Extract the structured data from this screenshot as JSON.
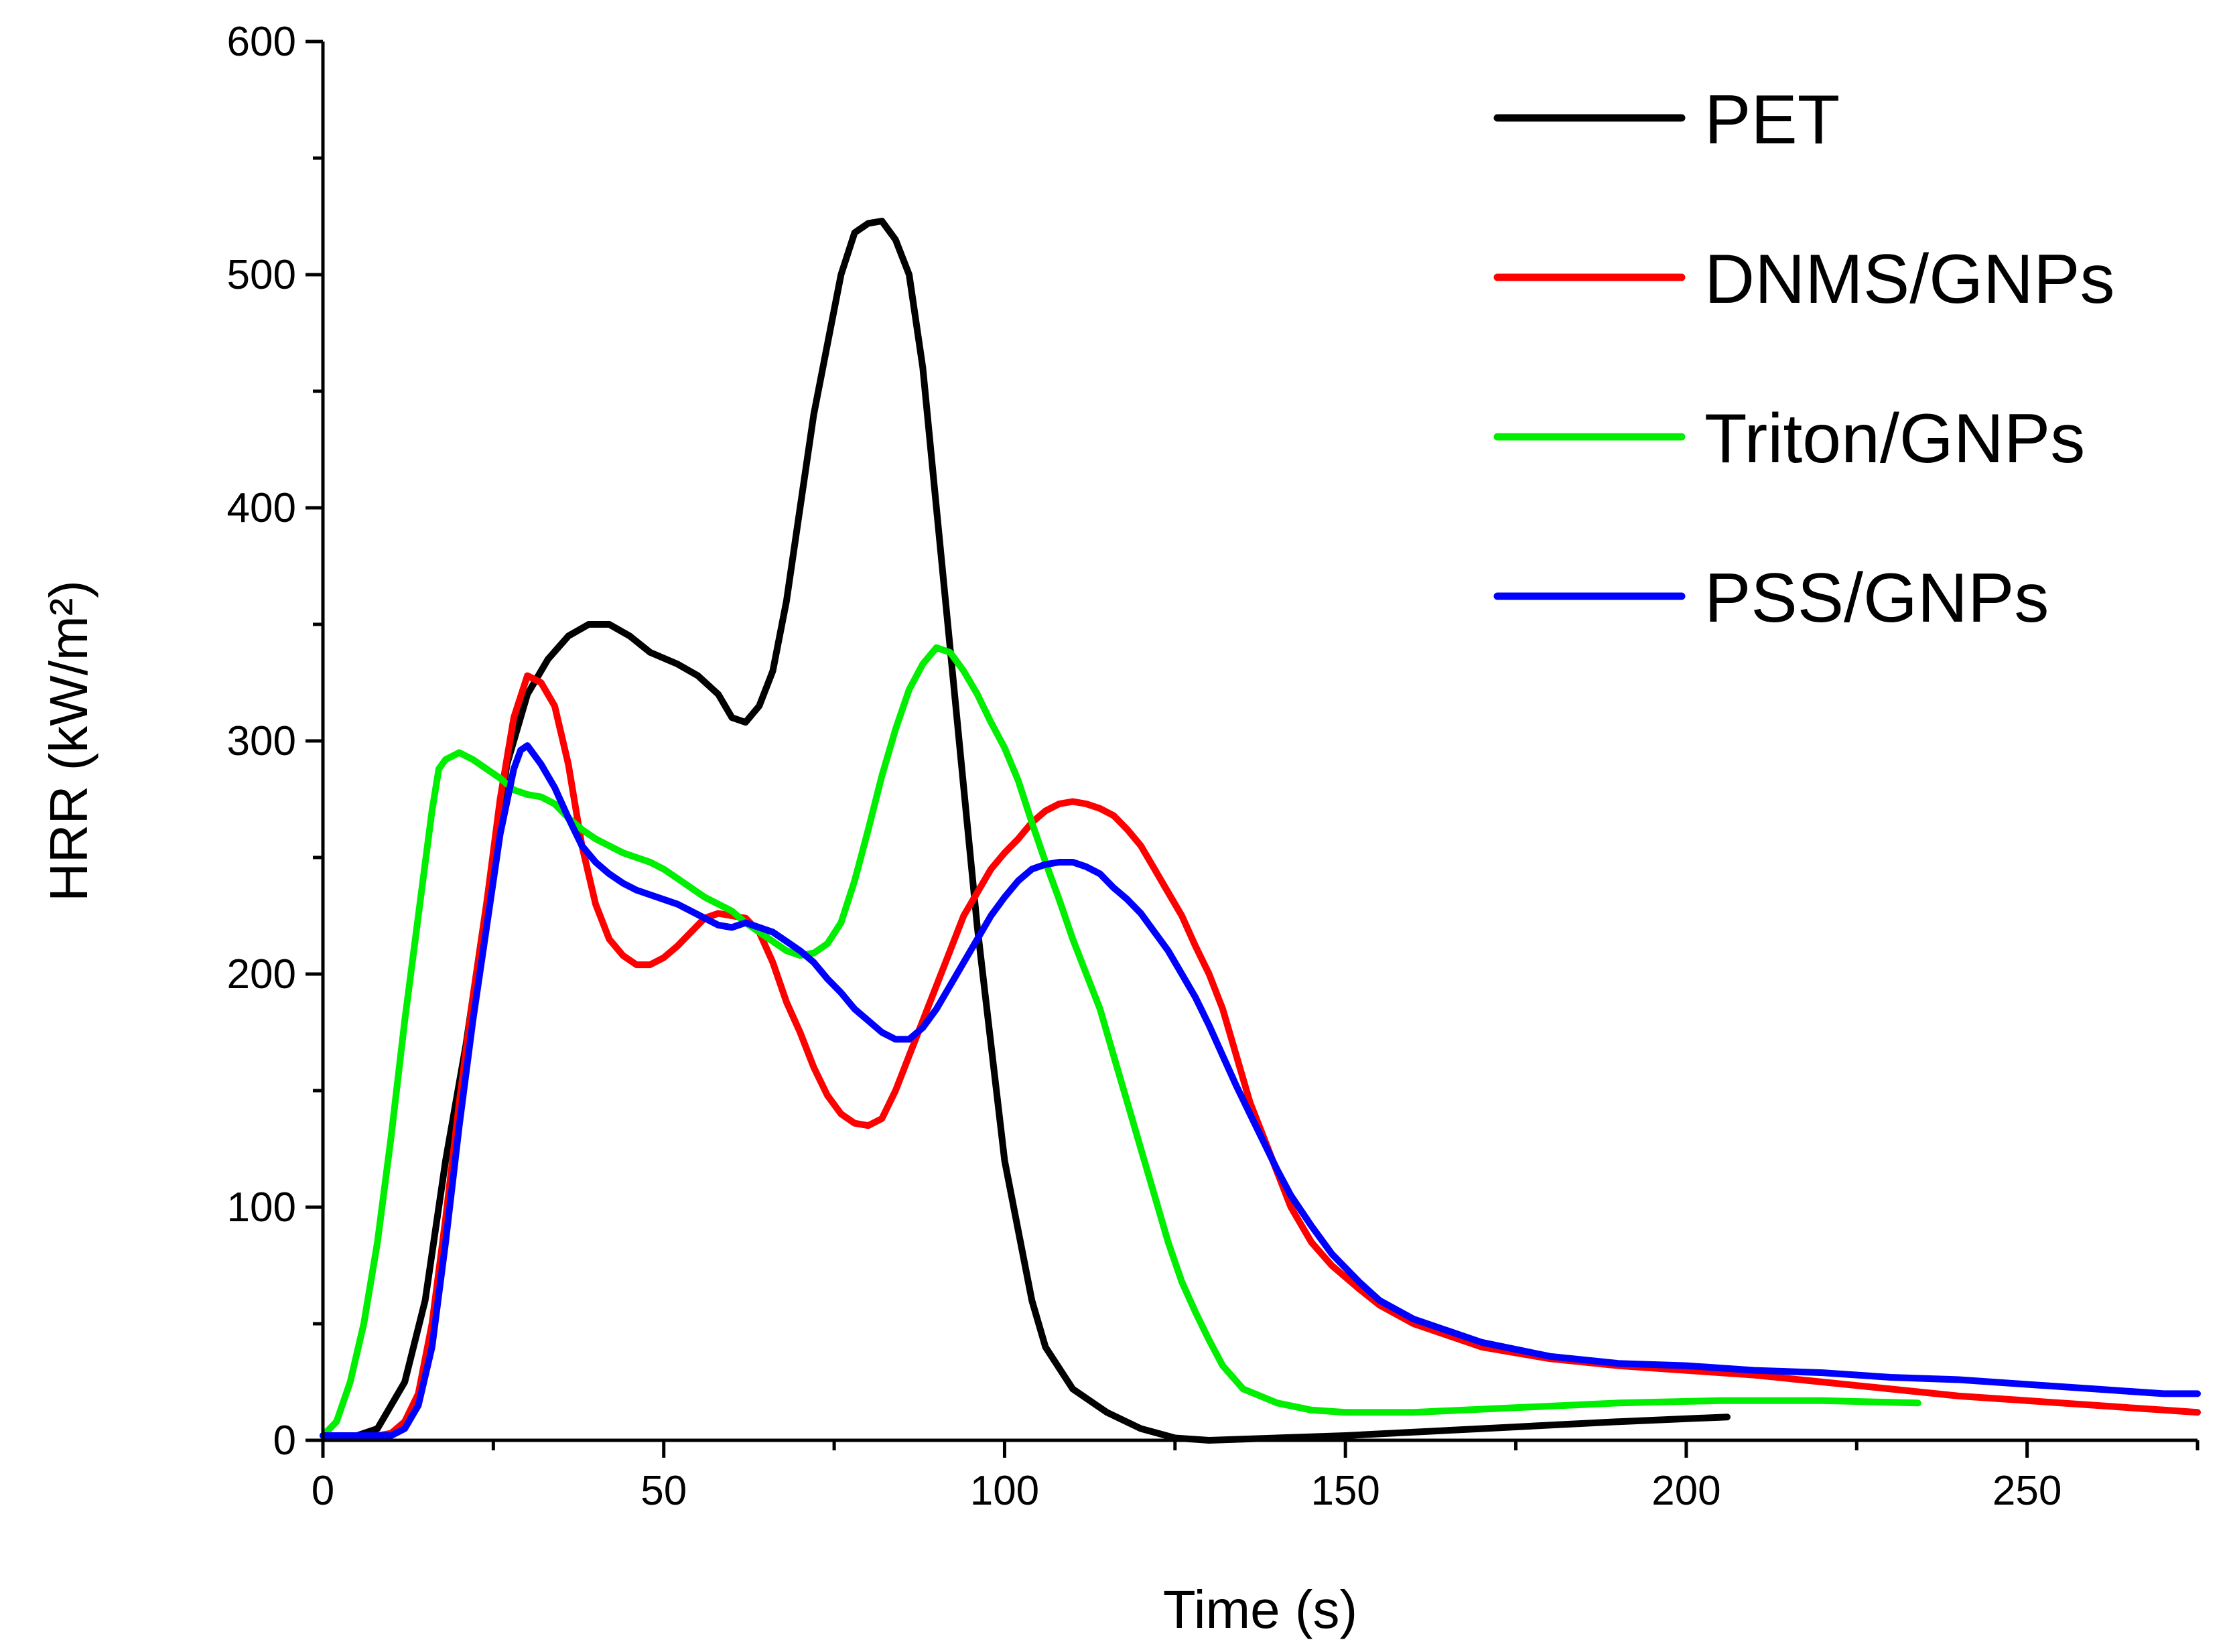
{
  "chart_data": {
    "type": "line",
    "title": "",
    "xlabel": "Time (s)",
    "ylabel": "HRR (kW/m²)",
    "xlim": [
      0,
      275
    ],
    "ylim": [
      0,
      600
    ],
    "x_ticks": [
      0,
      50,
      100,
      150,
      200,
      250
    ],
    "x_tick_labels": [
      "0",
      "50",
      "100",
      "150",
      "200",
      "250"
    ],
    "y_ticks": [
      0,
      100,
      200,
      300,
      400,
      500,
      600
    ],
    "y_tick_labels": [
      "0",
      "100",
      "200",
      "300",
      "400",
      "500",
      "600"
    ],
    "x_minor_step": 25,
    "y_minor_step": 50,
    "grid": false,
    "legend_position": "top-right",
    "series": [
      {
        "name": "PET",
        "color": "#000000",
        "points": [
          [
            0,
            2
          ],
          [
            5,
            2
          ],
          [
            8,
            5
          ],
          [
            12,
            25
          ],
          [
            15,
            60
          ],
          [
            18,
            120
          ],
          [
            21,
            170
          ],
          [
            24,
            230
          ],
          [
            27,
            290
          ],
          [
            30,
            320
          ],
          [
            33,
            335
          ],
          [
            36,
            345
          ],
          [
            39,
            350
          ],
          [
            42,
            350
          ],
          [
            45,
            345
          ],
          [
            48,
            338
          ],
          [
            52,
            333
          ],
          [
            55,
            328
          ],
          [
            58,
            320
          ],
          [
            60,
            310
          ],
          [
            62,
            308
          ],
          [
            64,
            315
          ],
          [
            66,
            330
          ],
          [
            68,
            360
          ],
          [
            70,
            400
          ],
          [
            72,
            440
          ],
          [
            74,
            470
          ],
          [
            76,
            500
          ],
          [
            78,
            518
          ],
          [
            80,
            522
          ],
          [
            82,
            523
          ],
          [
            84,
            515
          ],
          [
            86,
            500
          ],
          [
            88,
            460
          ],
          [
            90,
            400
          ],
          [
            92,
            340
          ],
          [
            94,
            280
          ],
          [
            96,
            220
          ],
          [
            98,
            170
          ],
          [
            100,
            120
          ],
          [
            102,
            90
          ],
          [
            104,
            60
          ],
          [
            106,
            40
          ],
          [
            110,
            22
          ],
          [
            115,
            12
          ],
          [
            120,
            5
          ],
          [
            125,
            1
          ],
          [
            130,
            0
          ],
          [
            150,
            2
          ],
          [
            170,
            5
          ],
          [
            190,
            8
          ],
          [
            206,
            10
          ]
        ]
      },
      {
        "name": "DNMS/GNPs",
        "color": "#ff0000",
        "points": [
          [
            0,
            2
          ],
          [
            8,
            2
          ],
          [
            10,
            3
          ],
          [
            12,
            8
          ],
          [
            14,
            20
          ],
          [
            16,
            50
          ],
          [
            18,
            95
          ],
          [
            20,
            145
          ],
          [
            22,
            190
          ],
          [
            24,
            230
          ],
          [
            26,
            275
          ],
          [
            28,
            310
          ],
          [
            30,
            328
          ],
          [
            32,
            325
          ],
          [
            34,
            315
          ],
          [
            36,
            290
          ],
          [
            38,
            255
          ],
          [
            40,
            230
          ],
          [
            42,
            215
          ],
          [
            44,
            208
          ],
          [
            46,
            204
          ],
          [
            48,
            204
          ],
          [
            50,
            207
          ],
          [
            52,
            212
          ],
          [
            54,
            218
          ],
          [
            56,
            224
          ],
          [
            58,
            226
          ],
          [
            62,
            224
          ],
          [
            64,
            218
          ],
          [
            66,
            205
          ],
          [
            68,
            188
          ],
          [
            70,
            175
          ],
          [
            72,
            160
          ],
          [
            74,
            148
          ],
          [
            76,
            140
          ],
          [
            78,
            136
          ],
          [
            80,
            135
          ],
          [
            82,
            138
          ],
          [
            84,
            150
          ],
          [
            86,
            165
          ],
          [
            88,
            180
          ],
          [
            90,
            195
          ],
          [
            92,
            210
          ],
          [
            94,
            225
          ],
          [
            96,
            235
          ],
          [
            98,
            245
          ],
          [
            100,
            252
          ],
          [
            102,
            258
          ],
          [
            104,
            265
          ],
          [
            106,
            270
          ],
          [
            108,
            273
          ],
          [
            110,
            274
          ],
          [
            112,
            273
          ],
          [
            114,
            271
          ],
          [
            116,
            268
          ],
          [
            118,
            262
          ],
          [
            120,
            255
          ],
          [
            122,
            245
          ],
          [
            124,
            235
          ],
          [
            126,
            225
          ],
          [
            128,
            212
          ],
          [
            130,
            200
          ],
          [
            132,
            185
          ],
          [
            134,
            165
          ],
          [
            136,
            145
          ],
          [
            138,
            130
          ],
          [
            140,
            115
          ],
          [
            142,
            100
          ],
          [
            145,
            85
          ],
          [
            148,
            75
          ],
          [
            152,
            65
          ],
          [
            155,
            58
          ],
          [
            160,
            50
          ],
          [
            165,
            45
          ],
          [
            170,
            40
          ],
          [
            180,
            35
          ],
          [
            190,
            32
          ],
          [
            200,
            30
          ],
          [
            210,
            28
          ],
          [
            220,
            25
          ],
          [
            230,
            22
          ],
          [
            240,
            19
          ],
          [
            250,
            17
          ],
          [
            260,
            15
          ],
          [
            270,
            13
          ],
          [
            275,
            12
          ]
        ]
      },
      {
        "name": "Triton/GNPs",
        "color": "#00ee00",
        "points": [
          [
            0,
            2
          ],
          [
            2,
            8
          ],
          [
            4,
            25
          ],
          [
            6,
            50
          ],
          [
            8,
            85
          ],
          [
            10,
            130
          ],
          [
            12,
            180
          ],
          [
            14,
            225
          ],
          [
            16,
            270
          ],
          [
            17,
            288
          ],
          [
            18,
            292
          ],
          [
            20,
            295
          ],
          [
            22,
            292
          ],
          [
            24,
            288
          ],
          [
            26,
            284
          ],
          [
            28,
            279
          ],
          [
            30,
            277
          ],
          [
            32,
            276
          ],
          [
            34,
            273
          ],
          [
            36,
            267
          ],
          [
            38,
            262
          ],
          [
            40,
            258
          ],
          [
            42,
            255
          ],
          [
            44,
            252
          ],
          [
            46,
            250
          ],
          [
            48,
            248
          ],
          [
            50,
            245
          ],
          [
            52,
            241
          ],
          [
            54,
            237
          ],
          [
            56,
            233
          ],
          [
            58,
            230
          ],
          [
            60,
            227
          ],
          [
            62,
            222
          ],
          [
            64,
            218
          ],
          [
            66,
            214
          ],
          [
            68,
            210
          ],
          [
            70,
            208
          ],
          [
            72,
            209
          ],
          [
            74,
            213
          ],
          [
            76,
            222
          ],
          [
            78,
            240
          ],
          [
            80,
            262
          ],
          [
            82,
            285
          ],
          [
            84,
            305
          ],
          [
            86,
            322
          ],
          [
            88,
            333
          ],
          [
            90,
            340
          ],
          [
            92,
            338
          ],
          [
            94,
            330
          ],
          [
            96,
            320
          ],
          [
            98,
            308
          ],
          [
            100,
            297
          ],
          [
            102,
            283
          ],
          [
            104,
            265
          ],
          [
            106,
            248
          ],
          [
            108,
            232
          ],
          [
            110,
            215
          ],
          [
            112,
            200
          ],
          [
            114,
            185
          ],
          [
            116,
            165
          ],
          [
            118,
            145
          ],
          [
            120,
            125
          ],
          [
            122,
            105
          ],
          [
            124,
            85
          ],
          [
            126,
            68
          ],
          [
            128,
            55
          ],
          [
            130,
            43
          ],
          [
            132,
            32
          ],
          [
            135,
            22
          ],
          [
            140,
            16
          ],
          [
            145,
            13
          ],
          [
            150,
            12
          ],
          [
            160,
            12
          ],
          [
            175,
            14
          ],
          [
            190,
            16
          ],
          [
            205,
            17
          ],
          [
            220,
            17
          ],
          [
            234,
            16
          ]
        ]
      },
      {
        "name": "PSS/GNPs",
        "color": "#0000ff",
        "points": [
          [
            0,
            2
          ],
          [
            10,
            2
          ],
          [
            12,
            5
          ],
          [
            14,
            15
          ],
          [
            16,
            40
          ],
          [
            18,
            85
          ],
          [
            20,
            135
          ],
          [
            22,
            180
          ],
          [
            24,
            220
          ],
          [
            26,
            260
          ],
          [
            28,
            288
          ],
          [
            29,
            296
          ],
          [
            30,
            298
          ],
          [
            32,
            290
          ],
          [
            34,
            280
          ],
          [
            36,
            267
          ],
          [
            38,
            255
          ],
          [
            40,
            248
          ],
          [
            42,
            243
          ],
          [
            44,
            239
          ],
          [
            46,
            236
          ],
          [
            48,
            234
          ],
          [
            50,
            232
          ],
          [
            52,
            230
          ],
          [
            54,
            227
          ],
          [
            56,
            224
          ],
          [
            58,
            221
          ],
          [
            60,
            220
          ],
          [
            62,
            222
          ],
          [
            64,
            220
          ],
          [
            66,
            218
          ],
          [
            68,
            214
          ],
          [
            70,
            210
          ],
          [
            72,
            205
          ],
          [
            74,
            198
          ],
          [
            76,
            192
          ],
          [
            78,
            185
          ],
          [
            80,
            180
          ],
          [
            82,
            175
          ],
          [
            84,
            172
          ],
          [
            86,
            172
          ],
          [
            88,
            177
          ],
          [
            90,
            185
          ],
          [
            92,
            195
          ],
          [
            94,
            205
          ],
          [
            96,
            215
          ],
          [
            98,
            225
          ],
          [
            100,
            233
          ],
          [
            102,
            240
          ],
          [
            104,
            245
          ],
          [
            106,
            247
          ],
          [
            108,
            248
          ],
          [
            110,
            248
          ],
          [
            112,
            246
          ],
          [
            114,
            243
          ],
          [
            116,
            237
          ],
          [
            118,
            232
          ],
          [
            120,
            226
          ],
          [
            122,
            218
          ],
          [
            124,
            210
          ],
          [
            126,
            200
          ],
          [
            128,
            190
          ],
          [
            130,
            178
          ],
          [
            132,
            165
          ],
          [
            134,
            152
          ],
          [
            136,
            140
          ],
          [
            138,
            128
          ],
          [
            140,
            116
          ],
          [
            142,
            105
          ],
          [
            145,
            92
          ],
          [
            148,
            80
          ],
          [
            152,
            68
          ],
          [
            155,
            60
          ],
          [
            160,
            52
          ],
          [
            165,
            47
          ],
          [
            170,
            42
          ],
          [
            180,
            36
          ],
          [
            190,
            33
          ],
          [
            200,
            32
          ],
          [
            210,
            30
          ],
          [
            220,
            29
          ],
          [
            230,
            27
          ],
          [
            240,
            26
          ],
          [
            250,
            24
          ],
          [
            260,
            22
          ],
          [
            270,
            20
          ],
          [
            275,
            20
          ]
        ]
      }
    ]
  }
}
